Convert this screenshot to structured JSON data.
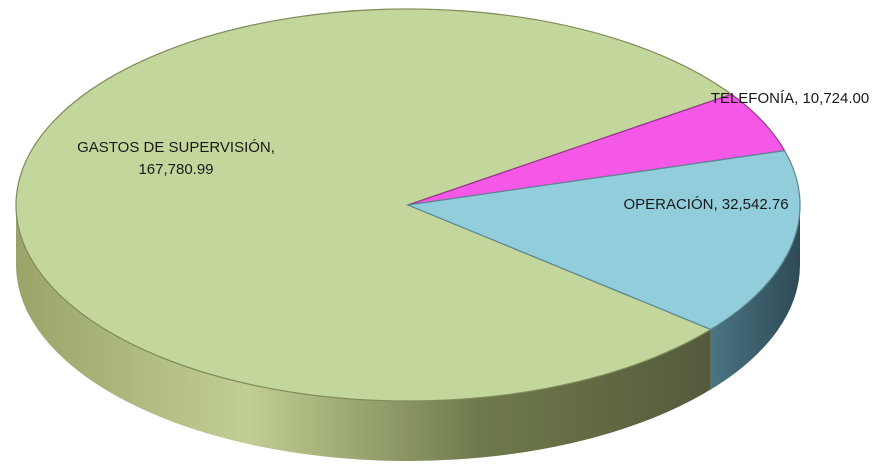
{
  "chart_data": {
    "type": "pie",
    "style": "3d",
    "title": "",
    "legend": "none",
    "slices": [
      {
        "label": "GASTOS DE SUPERVISIÓN",
        "value": 167780.99,
        "label_lines": [
          "GASTOS DE SUPERVISIÓN,",
          "167,780.99"
        ],
        "top_color": "#c3d69b",
        "side_colors": [
          "#9aa46a",
          "#c1ce93",
          "#6f7a4c",
          "#545a3c"
        ],
        "edge_color": "#7f8a5a"
      },
      {
        "label": "TELEFONÍA",
        "value": 10724.0,
        "label_lines": [
          "TELEFONÍA, 10,724.00"
        ],
        "top_color": "#f558e6",
        "side_colors": [
          "#9d2e92",
          "#7a1f70"
        ],
        "edge_color": "#9a3590"
      },
      {
        "label": "OPERACIÓN",
        "value": 32542.76,
        "label_lines": [
          "OPERACIÓN, 32,542.76"
        ],
        "top_color": "#92cddc",
        "side_colors": [
          "#4b7482",
          "#2e4a55"
        ],
        "edge_color": "#5b8794"
      }
    ]
  }
}
